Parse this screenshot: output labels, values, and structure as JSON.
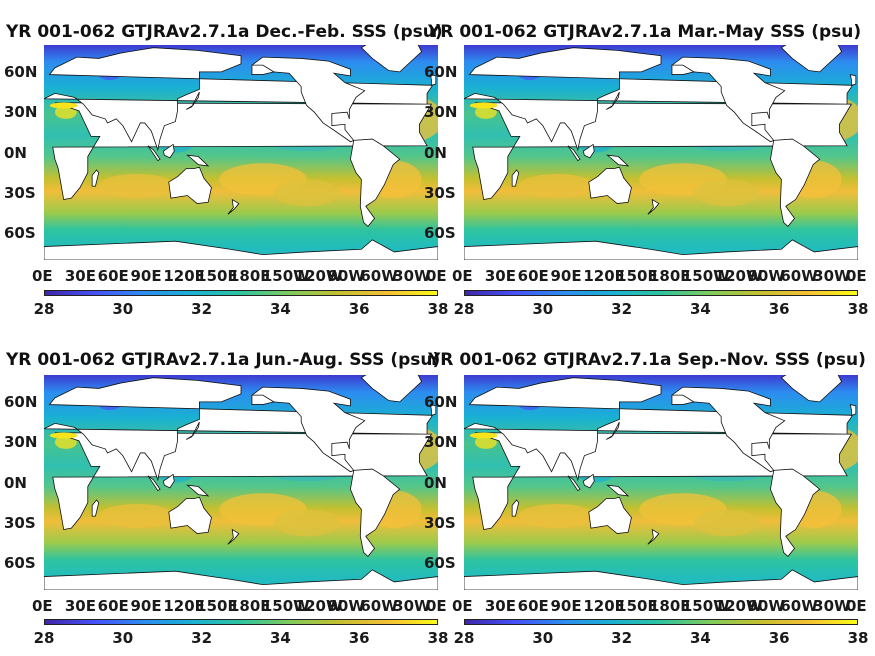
{
  "chart_data": [
    {
      "type": "heatmap",
      "title": "YR 001-062 GTJRAv2.7.1a Dec.-Feb. SSS (psu)",
      "ylabels": [
        "60N",
        "30N",
        "0N",
        "30S",
        "60S"
      ],
      "xlabels": [
        "0E",
        "30E",
        "60E",
        "90E",
        "120E",
        "150E",
        "180E",
        "150W",
        "120W",
        "90W",
        "60W",
        "30W",
        "0E"
      ],
      "colorbar": {
        "ticks": [
          "28",
          "30",
          "32",
          "34",
          "36",
          "38"
        ],
        "range": [
          28,
          38
        ],
        "colormap": "parula"
      }
    },
    {
      "type": "heatmap",
      "title": "YR 001-062 GTJRAv2.7.1a Mar.-May SSS (psu)",
      "ylabels": [
        "60N",
        "30N",
        "0N",
        "30S",
        "60S"
      ],
      "xlabels": [
        "0E",
        "30E",
        "60E",
        "90E",
        "120E",
        "150E",
        "180E",
        "150W",
        "120W",
        "90W",
        "60W",
        "30W",
        "0E"
      ],
      "colorbar": {
        "ticks": [
          "28",
          "30",
          "32",
          "34",
          "36",
          "38"
        ],
        "range": [
          28,
          38
        ],
        "colormap": "parula"
      }
    },
    {
      "type": "heatmap",
      "title": "YR 001-062 GTJRAv2.7.1a Jun.-Aug. SSS (psu)",
      "ylabels": [
        "60N",
        "30N",
        "0N",
        "30S",
        "60S"
      ],
      "xlabels": [
        "0E",
        "30E",
        "60E",
        "90E",
        "120E",
        "150E",
        "180E",
        "150W",
        "120W",
        "90W",
        "60W",
        "30W",
        "0E"
      ],
      "colorbar": {
        "ticks": [
          "28",
          "30",
          "32",
          "34",
          "36",
          "38"
        ],
        "range": [
          28,
          38
        ],
        "colormap": "parula"
      }
    },
    {
      "type": "heatmap",
      "title": "YR 001-062 GTJRAv2.7.1a Sep.-Nov. SSS (psu)",
      "ylabels": [
        "60N",
        "30N",
        "0N",
        "30S",
        "60S"
      ],
      "xlabels": [
        "0E",
        "30E",
        "60E",
        "90E",
        "120E",
        "150E",
        "180E",
        "150W",
        "120W",
        "90W",
        "60W",
        "30W",
        "0E"
      ],
      "colorbar": {
        "ticks": [
          "28",
          "30",
          "32",
          "34",
          "36",
          "38"
        ],
        "range": [
          28,
          38
        ],
        "colormap": "parula"
      }
    }
  ],
  "colors": {
    "land": "#ffffff",
    "ocean_low": "#19b1d2",
    "ocean_mid": "#7fcb5c",
    "ocean_high": "#f5c035"
  }
}
